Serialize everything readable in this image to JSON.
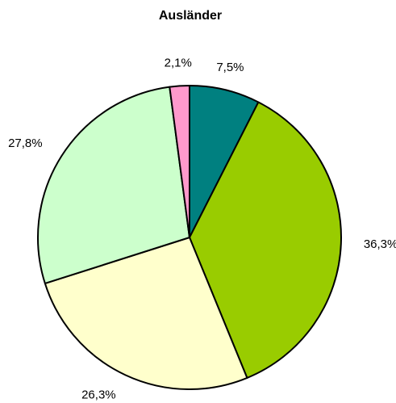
{
  "chart_data": {
    "type": "pie",
    "title": "Ausländer",
    "values": [
      7.5,
      36.3,
      26.3,
      27.8,
      2.1
    ],
    "value_labels": [
      "7,5%",
      "36,3%",
      "26,3%",
      "27,8%",
      "2,1%"
    ],
    "colors": [
      "#008080",
      "#99cc00",
      "#ffffcc",
      "#ccffcc",
      "#ff99cc"
    ]
  }
}
